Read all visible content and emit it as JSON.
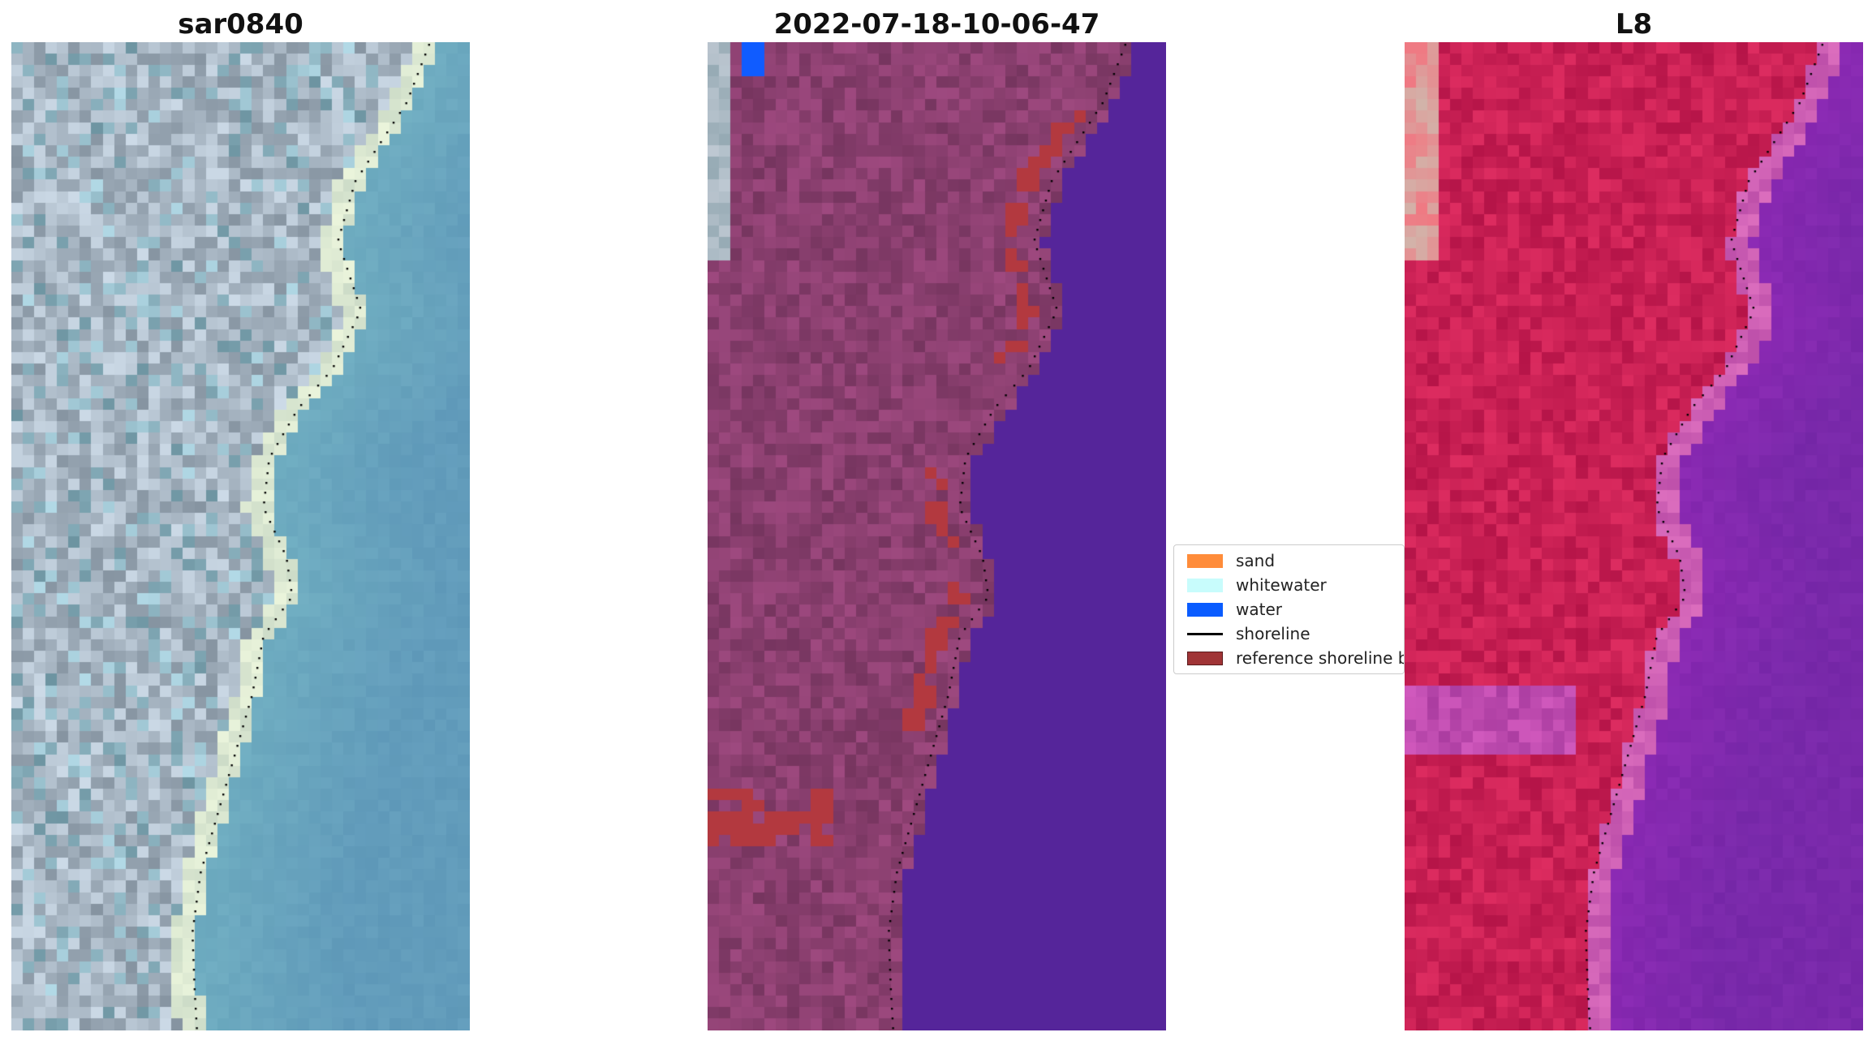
{
  "panels": [
    {
      "title": "sar0840",
      "palette": "rgb"
    },
    {
      "title": "2022-07-18-10-06-47",
      "palette": "classified"
    },
    {
      "title": "L8",
      "palette": "falsecolor"
    }
  ],
  "legend": {
    "items": [
      {
        "label": "sand",
        "type": "patch",
        "color": "#ff8c3a"
      },
      {
        "label": "whitewater",
        "type": "patch",
        "color": "#c8fcfc"
      },
      {
        "label": "water",
        "type": "patch",
        "color": "#0a5cff"
      },
      {
        "label": "shoreline",
        "type": "line",
        "color": "#000000"
      },
      {
        "label": "reference shoreline b",
        "type": "patch",
        "color": "#a03436"
      }
    ]
  },
  "colors": {
    "water_rgb": "#5a92b4",
    "land_rgb": "#a9b7bc",
    "classified_land": "#8a3f6f",
    "classified_water": "#55259a",
    "classified_ref_band": "#b3393f",
    "false_land": "#c92054",
    "false_water": "#6a1c9c"
  }
}
